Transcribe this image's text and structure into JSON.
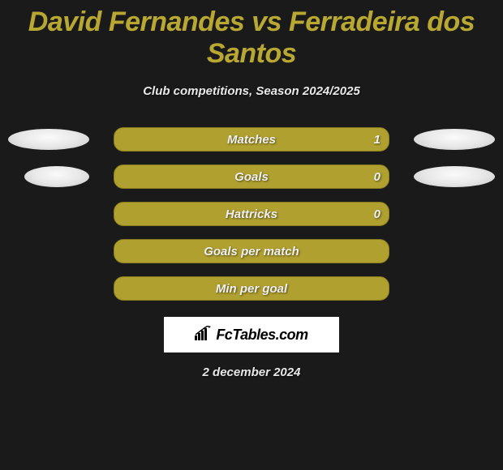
{
  "title": "David Fernandes vs Ferradeira dos Santos",
  "subtitle": "Club competitions, Season 2024/2025",
  "bar_color": "#b0a030",
  "bar_border": "#8a7d20",
  "title_color": "#b8a832",
  "text_color": "#e8e8e8",
  "background": "#1a1a1a",
  "ellipse_gradient": [
    "#fafafa",
    "#e8e8e8",
    "#c8c8c8"
  ],
  "rows": [
    {
      "label": "Matches",
      "value": "1",
      "show_value": true,
      "left_ellipse": true,
      "right_ellipse": true
    },
    {
      "label": "Goals",
      "value": "0",
      "show_value": true,
      "left_ellipse": true,
      "right_ellipse": true
    },
    {
      "label": "Hattricks",
      "value": "0",
      "show_value": true,
      "left_ellipse": false,
      "right_ellipse": false
    },
    {
      "label": "Goals per match",
      "value": "",
      "show_value": false,
      "left_ellipse": false,
      "right_ellipse": false
    },
    {
      "label": "Min per goal",
      "value": "",
      "show_value": false,
      "left_ellipse": false,
      "right_ellipse": false
    }
  ],
  "brand": "FcTables.com",
  "date": "2 december 2024"
}
